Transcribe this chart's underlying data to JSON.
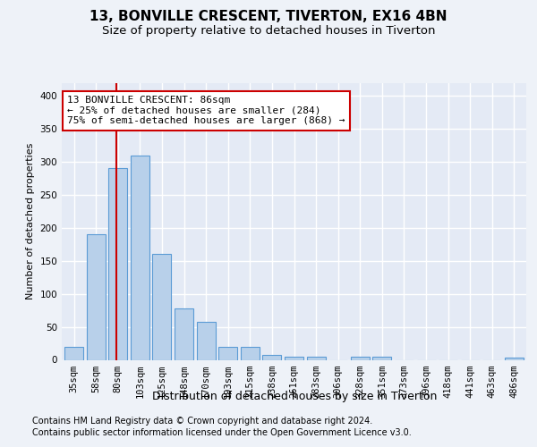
{
  "title1": "13, BONVILLE CRESCENT, TIVERTON, EX16 4BN",
  "title2": "Size of property relative to detached houses in Tiverton",
  "xlabel": "Distribution of detached houses by size in Tiverton",
  "ylabel": "Number of detached properties",
  "categories": [
    "35sqm",
    "58sqm",
    "80sqm",
    "103sqm",
    "125sqm",
    "148sqm",
    "170sqm",
    "193sqm",
    "215sqm",
    "238sqm",
    "261sqm",
    "283sqm",
    "306sqm",
    "328sqm",
    "351sqm",
    "373sqm",
    "396sqm",
    "418sqm",
    "441sqm",
    "463sqm",
    "486sqm"
  ],
  "values": [
    20,
    190,
    290,
    310,
    160,
    78,
    57,
    19,
    19,
    8,
    5,
    5,
    0,
    5,
    5,
    0,
    0,
    0,
    0,
    0,
    3
  ],
  "bar_color": "#b8d0ea",
  "bar_edge_color": "#5b9bd5",
  "property_line_x": 1.92,
  "annotation_line1": "13 BONVILLE CRESCENT: 86sqm",
  "annotation_line2": "← 25% of detached houses are smaller (284)",
  "annotation_line3": "75% of semi-detached houses are larger (868) →",
  "annotation_box_color": "#ffffff",
  "annotation_box_edge": "#cc0000",
  "vline_color": "#cc0000",
  "ylim": [
    0,
    420
  ],
  "yticks": [
    0,
    50,
    100,
    150,
    200,
    250,
    300,
    350,
    400
  ],
  "footer1": "Contains HM Land Registry data © Crown copyright and database right 2024.",
  "footer2": "Contains public sector information licensed under the Open Government Licence v3.0.",
  "background_color": "#eef2f8",
  "plot_background": "#e4eaf5",
  "grid_color": "#ffffff",
  "title1_fontsize": 11,
  "title2_fontsize": 9.5,
  "xlabel_fontsize": 9,
  "ylabel_fontsize": 8,
  "tick_fontsize": 7.5,
  "annotation_fontsize": 8,
  "footer_fontsize": 7
}
